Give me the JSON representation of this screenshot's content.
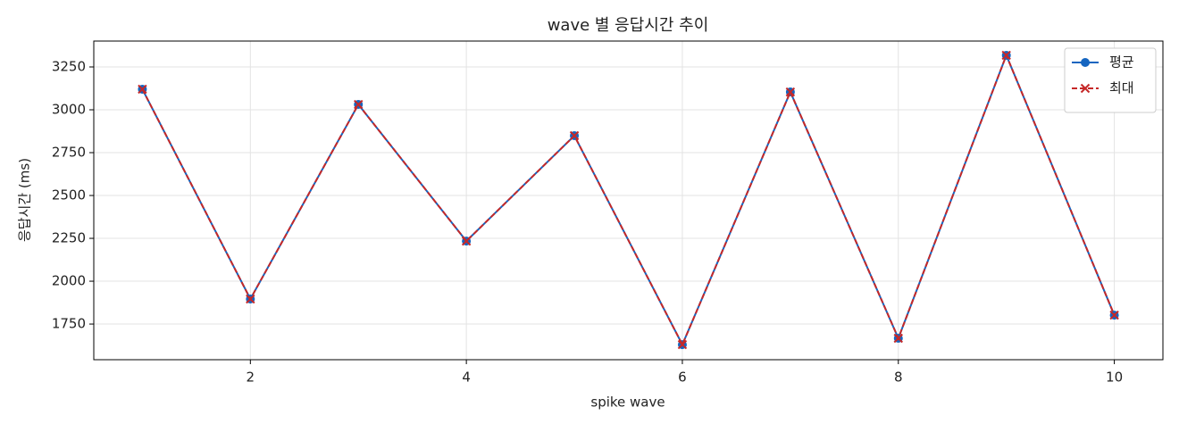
{
  "chart_data": {
    "type": "line",
    "title": "wave 별 응답시간 추이",
    "x_label": "spike wave",
    "y_label": "응답시간 (ms)",
    "x": [
      1,
      2,
      3,
      4,
      5,
      6,
      7,
      8,
      9,
      10
    ],
    "series": [
      {
        "name": "평균",
        "color": "#1565c0",
        "marker": "circle",
        "dash": false,
        "values": [
          3120,
          1896,
          3031,
          2234,
          2849,
          1630,
          3104,
          1667,
          3318,
          1802
        ]
      },
      {
        "name": "최대",
        "color": "#c62828",
        "marker": "x",
        "dash": true,
        "values": [
          3120,
          1896,
          3031,
          2234,
          2849,
          1630,
          3104,
          1667,
          3318,
          1802
        ]
      }
    ],
    "xlim": [
      0.55,
      10.45
    ],
    "xticks": [
      2,
      4,
      6,
      8,
      10
    ],
    "ylim": [
      1542,
      3401
    ],
    "yticks": [
      1750,
      2000,
      2250,
      2500,
      2750,
      3000,
      3250
    ],
    "grid": true,
    "legend": "upper right"
  }
}
